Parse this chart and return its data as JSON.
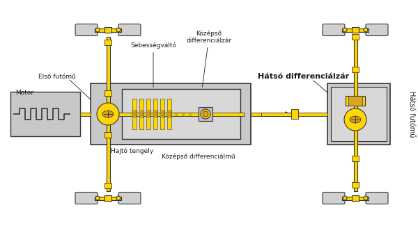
{
  "bg_color": "#ffffff",
  "yellow": "#FFD700",
  "yellow_dark": "#DAA520",
  "gray_light": "#d0d0d0",
  "gray_mid": "#b0b0b0",
  "gray_dark": "#888888",
  "black": "#1a1a1a",
  "outline": "#333333",
  "labels": {
    "motor": "Motor",
    "sebessegvalto": "Sebességváltó",
    "kozepso_difzar": "Középső\ndifferenciálzár",
    "elso_futomű": "Első futómű",
    "hajto_tengely": "Hajtó tengely",
    "kozepso_difmu": "Középső differenciálmű",
    "hatso_difzar": "Hátsó differenciálzár",
    "hatso_futomű": "Hátsó futómű"
  },
  "figsize": [
    6.0,
    3.28
  ],
  "dpi": 100
}
